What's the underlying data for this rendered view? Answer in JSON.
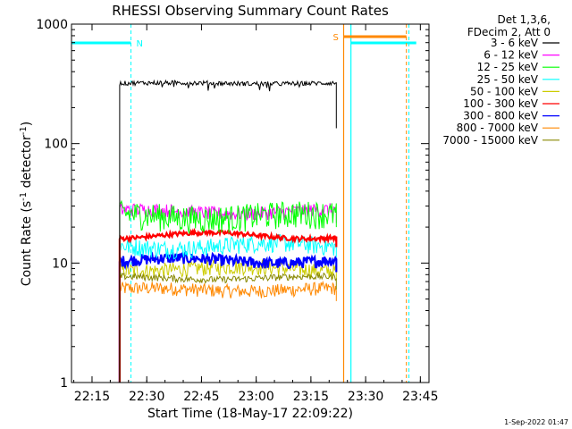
{
  "chart_data": {
    "type": "line",
    "title": "RHESSI Observing Summary Count Rates",
    "xlabel": "Start Time (18-May-17 22:09:22)",
    "ylabel_parts": [
      "Count Rate (s",
      "-1",
      " detector",
      "-1",
      ")"
    ],
    "yscale": "log",
    "ylim": [
      1,
      1000
    ],
    "xlim_minutes": [
      0,
      98
    ],
    "x_ticks": [
      {
        "label": "22:15",
        "minute": 5.63
      },
      {
        "label": "22:30",
        "minute": 20.63
      },
      {
        "label": "22:45",
        "minute": 35.63
      },
      {
        "label": "23:00",
        "minute": 50.63
      },
      {
        "label": "23:15",
        "minute": 65.63
      },
      {
        "label": "23:30",
        "minute": 80.63
      },
      {
        "label": "23:45",
        "minute": 95.63
      }
    ],
    "y_ticks": [
      {
        "label": "1",
        "value": 1
      },
      {
        "label": "10",
        "value": 10
      },
      {
        "label": "100",
        "value": 100
      },
      {
        "label": "1000",
        "value": 1000
      }
    ],
    "legend_header": [
      "Det 1,3,6,",
      "FDecim 2, Att 0"
    ],
    "data_window_minutes": [
      13.2,
      72.6
    ],
    "series": [
      {
        "name": "3 - 6 keV",
        "color": "#000000",
        "level": 320,
        "wobble": 0.01,
        "noise": 0.02
      },
      {
        "name": "6 - 12 keV",
        "color": "#ff00ff",
        "level": 27,
        "wobble": 0.04,
        "noise": 0.06
      },
      {
        "name": "12 - 25 keV",
        "color": "#00ff00",
        "level": 25,
        "wobble": 0.05,
        "noise": 0.12
      },
      {
        "name": "25 - 50 keV",
        "color": "#00ffff",
        "level": 14,
        "wobble": 0.06,
        "noise": 0.08
      },
      {
        "name": "50 - 100 keV",
        "color": "#cccc00",
        "level": 9,
        "wobble": 0.04,
        "noise": 0.07
      },
      {
        "name": "100 - 300 keV",
        "color": "#ff0000",
        "level": 17,
        "wobble": 0.06,
        "noise": 0.02
      },
      {
        "name": "300 - 800 keV",
        "color": "#0000ff",
        "level": 10.5,
        "wobble": 0.05,
        "noise": 0.05
      },
      {
        "name": "800 - 7000 keV",
        "color": "#ff8800",
        "level": 6,
        "wobble": 0.03,
        "noise": 0.06
      },
      {
        "name": "7000 - 15000 keV",
        "color": "#888800",
        "level": 7.5,
        "wobble": 0.03,
        "noise": 0.03
      }
    ],
    "night_markers": [
      {
        "label": "N",
        "color": "#00ffff",
        "start": -1,
        "end": 16.3,
        "dash_at": 16.3,
        "line_at": -0.5
      },
      {
        "label": "",
        "color": "#00ffff",
        "start": 76.6,
        "end": 94.5,
        "dash_at": 92.5,
        "line_at": 76.6
      }
    ],
    "saa_marker": {
      "label": "S",
      "color": "#ff8800",
      "start": 74.6,
      "end": 91.8,
      "line_at": 74.6,
      "dash_at": 91.8
    },
    "footer": "1-Sep-2022 01:47"
  }
}
